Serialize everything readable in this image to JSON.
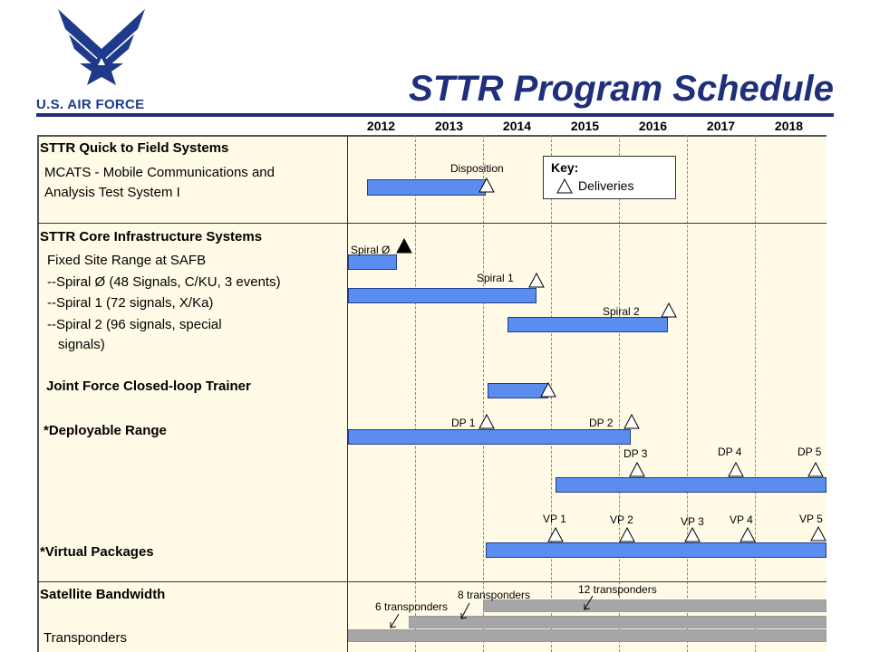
{
  "title": "STTR Program Schedule",
  "logo": {
    "text": "U.S. AIR FORCE"
  },
  "years": [
    "2012",
    "2013",
    "2014",
    "2015",
    "2016",
    "2017",
    "2018"
  ],
  "key": {
    "title": "Key:",
    "item": "Deliveries"
  },
  "sections": {
    "quick": {
      "heading": "STTR Quick to Field Systems",
      "line1": "MCATS - Mobile Communications and",
      "line2": "Analysis Test System I",
      "milestone": "Disposition"
    },
    "core": {
      "heading": "STTR Core Infrastructure Systems",
      "fixed": "Fixed Site Range at SAFB",
      "spiral0": "--Spiral Ø  (48 Signals, C/KU, 3 events)",
      "spiral1": "--Spiral 1 (72 signals, X/Ka)",
      "spiral2a": "--Spiral 2 (96 signals, special",
      "spiral2b": "signals)",
      "jfclt": "Joint Force Closed-loop Trainer",
      "deployable": "*Deployable Range",
      "virtual": "*Virtual Packages",
      "spiral0_tag": "Spiral Ø",
      "spiral1_tag": "Spiral 1",
      "spiral2_tag": "Spiral 2",
      "dp": [
        "DP 1",
        "DP 2",
        "DP 3",
        "DP 4",
        "DP 5"
      ],
      "vp": [
        "VP 1",
        "VP 2",
        "VP 3",
        "VP 4",
        "VP 5"
      ]
    },
    "satellite": {
      "heading": "Satellite Bandwidth",
      "transponders": "Transponders",
      "t6": "6 transponders",
      "t8": "8 transponders",
      "t12": "12 transponders"
    }
  }
}
